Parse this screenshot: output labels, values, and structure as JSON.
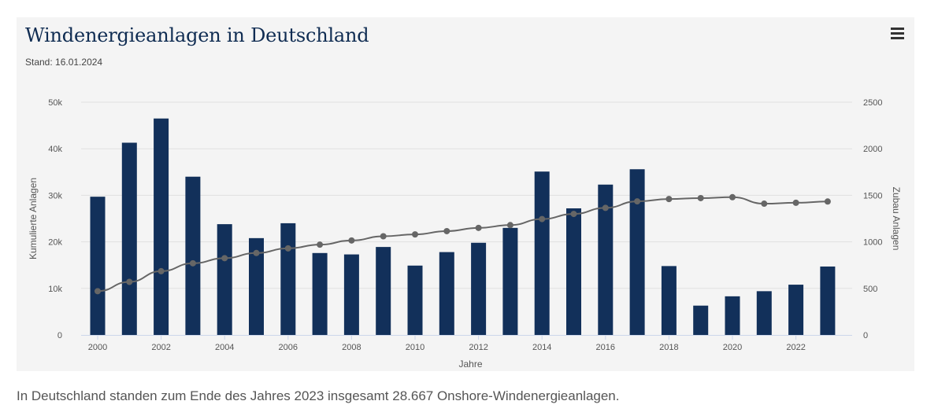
{
  "chart_data": {
    "type": "bar+line",
    "title": "Windenergieanlagen in Deutschland",
    "subtitle": "Stand: 16.01.2024",
    "xlabel": "Jahre",
    "ylabel_left": "Kumulierte Anlagen",
    "ylabel_right": "Zubau Anlagen",
    "ylim_left": [
      0,
      50000
    ],
    "ylim_right": [
      0,
      2500
    ],
    "yticks_left": [
      "0",
      "10k",
      "20k",
      "30k",
      "40k",
      "50k"
    ],
    "yticks_right": [
      "0",
      "500",
      "1000",
      "1500",
      "2000",
      "2500"
    ],
    "xticks": [
      "2000",
      "2002",
      "2004",
      "2006",
      "2008",
      "2010",
      "2012",
      "2014",
      "2016",
      "2018",
      "2020",
      "2022"
    ],
    "x": [
      2000,
      2001,
      2002,
      2003,
      2004,
      2005,
      2006,
      2007,
      2008,
      2009,
      2010,
      2011,
      2012,
      2013,
      2014,
      2015,
      2016,
      2017,
      2018,
      2019,
      2020,
      2021,
      2022,
      2023
    ],
    "bar_series": {
      "axis": "right",
      "color": "#12305a",
      "values": [
        1485,
        2065,
        2325,
        1700,
        1190,
        1040,
        1200,
        880,
        865,
        945,
        745,
        890,
        990,
        1150,
        1755,
        1360,
        1615,
        1780,
        740,
        315,
        415,
        470,
        540,
        735
      ]
    },
    "line_series": {
      "axis": "left",
      "color": "#666666",
      "values": [
        9400,
        11400,
        13700,
        15400,
        16500,
        17600,
        18600,
        19400,
        20300,
        21200,
        21600,
        22300,
        23000,
        23600,
        24900,
        26000,
        27300,
        28700,
        29200,
        29400,
        29600,
        28200,
        28400,
        28667
      ]
    },
    "grid": true
  },
  "caption": "In Deutschland standen zum Ende des Jahres 2023 insgesamt 28.667 Onshore-Windenergieanlagen.",
  "icons": {
    "menu": "hamburger-menu-icon"
  }
}
